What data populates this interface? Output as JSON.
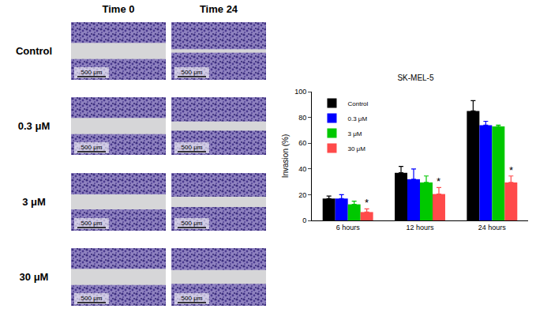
{
  "panels": {
    "columns": [
      "Time 0",
      "Time 24"
    ],
    "rows": [
      "Control",
      "0.3 μM",
      "3 μM",
      "30 μM"
    ],
    "scale_bar": "500 μm"
  },
  "chart_data": {
    "type": "bar",
    "title": "SK-MEL-5",
    "y_label": "Invasion (%)",
    "categories": [
      "6 hours",
      "12 hours",
      "24 hours"
    ],
    "series": [
      {
        "name": "Control",
        "color": "#000000",
        "values": [
          17,
          37,
          85
        ],
        "errors": [
          2,
          5,
          8
        ]
      },
      {
        "name": "0.3 μM",
        "color": "#0000ff",
        "values": [
          17,
          32,
          74
        ],
        "errors": [
          3,
          8,
          3
        ]
      },
      {
        "name": "3 μM",
        "color": "#00c800",
        "values": [
          12.5,
          29.5,
          73
        ],
        "errors": [
          2.5,
          5,
          1
        ]
      },
      {
        "name": "30 μM",
        "color": "#ff4a4a",
        "values": [
          6.5,
          20.5,
          29.5
        ],
        "errors": [
          2.5,
          5,
          5
        ]
      }
    ],
    "ylim": [
      0,
      100
    ],
    "yticks": [
      0,
      20,
      40,
      60,
      80,
      100
    ],
    "grid": false,
    "legend": "top-left",
    "annotations": [
      {
        "category": "6 hours",
        "series": "30 μM",
        "text": "*"
      },
      {
        "category": "12 hours",
        "series": "30 μM",
        "text": "*"
      },
      {
        "category": "24 hours",
        "series": "30 μM",
        "text": "*"
      }
    ]
  }
}
